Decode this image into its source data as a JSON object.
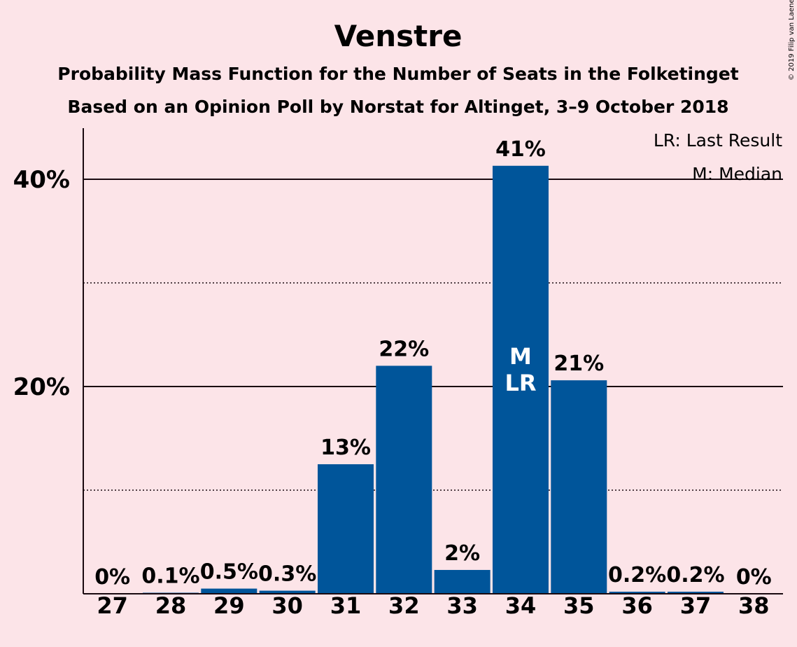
{
  "chart_data": {
    "type": "bar",
    "title": "Venstre",
    "subtitle": "Probability Mass Function for the Number of Seats in the Folketinget",
    "subtitle2": "Based on an Opinion Poll by Norstat for Altinget, 3–9 October 2018",
    "copyright": "© 2019 Filip van Laenen",
    "categories": [
      "27",
      "28",
      "29",
      "30",
      "31",
      "32",
      "33",
      "34",
      "35",
      "36",
      "37",
      "38"
    ],
    "values": [
      0,
      0.1,
      0.5,
      0.3,
      12.5,
      22.0,
      2.3,
      41.3,
      20.6,
      0.2,
      0.2,
      0
    ],
    "data_labels": [
      "0%",
      "0.1%",
      "0.5%",
      "0.3%",
      "13%",
      "22%",
      "2%",
      "41%",
      "21%",
      "0.2%",
      "0.2%",
      "0%"
    ],
    "ylim": [
      0,
      45
    ],
    "yticks": [
      20,
      40
    ],
    "ytick_labels": [
      "20%",
      "40%"
    ],
    "minor_gridlines": [
      10,
      30
    ],
    "bar_color": "#00559a",
    "bar_markers": {
      "index": 7,
      "lines": [
        "M",
        "LR"
      ]
    },
    "legend": [
      "LR: Last Result",
      "M: Median"
    ],
    "legend_position": "top-right"
  }
}
